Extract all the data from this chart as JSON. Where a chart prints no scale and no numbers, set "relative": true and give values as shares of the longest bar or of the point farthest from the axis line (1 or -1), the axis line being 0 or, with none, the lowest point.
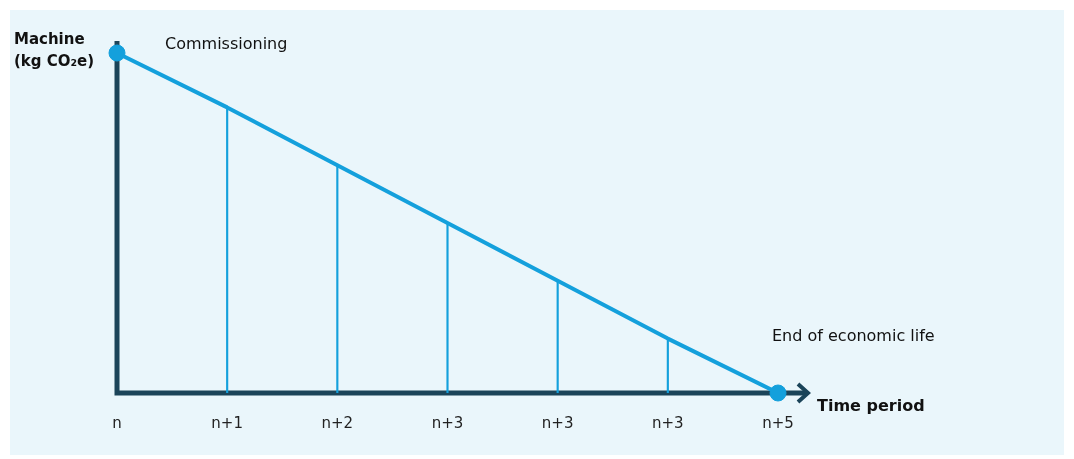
{
  "chart_data": {
    "type": "line",
    "relative": true,
    "xlabel": "Time period",
    "ylabel": "Machine (kg CO₂e)",
    "categories": [
      "n",
      "n+1",
      "n+2",
      "n+3",
      "n+3",
      "n+3",
      "n+5"
    ],
    "series": [
      {
        "type": "bar",
        "color": "#14a0dc",
        "values": [
          null,
          0.84,
          0.67,
          0.5,
          0.33,
          0.16,
          null
        ]
      },
      {
        "color": "#14a0dc",
        "values": [
          1,
          0.84,
          0.67,
          0.5,
          0.33,
          0.16,
          0
        ],
        "marker": "none"
      },
      {
        "type": "scatter",
        "color": "#14a0dc",
        "x": [
          "n",
          "n+5"
        ],
        "values": [
          1,
          0
        ],
        "marker": "circle"
      }
    ],
    "annotations": [
      "Commissioning",
      "End of economic life"
    ],
    "grid": false,
    "legend": false
  }
}
